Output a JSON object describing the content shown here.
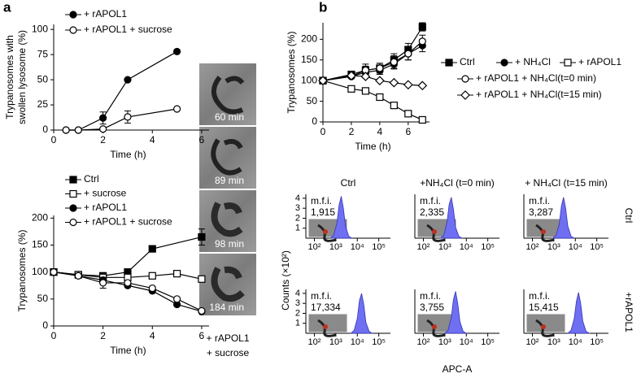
{
  "panel_labels": [
    "a",
    "b"
  ],
  "chart_data": [
    {
      "type": "line",
      "color": "#000000",
      "xlim": [
        0,
        6.3
      ],
      "xticks": [
        0,
        2,
        4,
        6
      ],
      "ylim": [
        0,
        105
      ],
      "yticks": [
        0,
        25,
        50,
        75,
        100
      ],
      "xlabel": "Time (h)",
      "ylabel": [
        "Trypanosomes with",
        "swollen lysosome (%)"
      ],
      "series": [
        {
          "name": "+ rAPOL1",
          "marker": "circle",
          "filled": true,
          "x": [
            0.5,
            1,
            2,
            3,
            5
          ],
          "values": [
            0,
            0,
            12,
            50,
            78
          ],
          "errors": [
            null,
            null,
            6,
            null,
            null
          ]
        },
        {
          "name": "+ rAPOL1 + sucrose",
          "marker": "circle",
          "filled": false,
          "x": [
            0.5,
            1,
            2,
            3,
            5
          ],
          "values": [
            0,
            0,
            1,
            13,
            21
          ],
          "errors": [
            null,
            null,
            null,
            6,
            null
          ]
        }
      ]
    },
    {
      "type": "line",
      "color": "#000000",
      "xlim": [
        0,
        6.3
      ],
      "xticks": [
        0,
        2,
        4,
        6
      ],
      "ylim": [
        0,
        205
      ],
      "yticks": [
        0,
        50,
        100,
        150,
        200
      ],
      "xlabel": "Time (h)",
      "ylabel": [
        "Trypanosomes (%)"
      ],
      "series": [
        {
          "name": "Ctrl",
          "marker": "square",
          "filled": true,
          "x": [
            0,
            1,
            2,
            3,
            4,
            6
          ],
          "values": [
            100,
            95,
            93,
            100,
            143,
            165
          ],
          "errors": [
            null,
            null,
            null,
            null,
            null,
            15
          ]
        },
        {
          "name": "+ sucrose",
          "marker": "square",
          "filled": false,
          "x": [
            0,
            1,
            2,
            3,
            4,
            5,
            6
          ],
          "values": [
            100,
            95,
            90,
            90,
            93,
            97,
            87
          ],
          "errors": [
            null,
            null,
            null,
            null,
            null,
            null,
            null
          ]
        },
        {
          "name": "+ rAPOL1",
          "marker": "circle",
          "filled": true,
          "x": [
            0,
            1,
            2,
            3,
            4,
            5,
            6
          ],
          "values": [
            100,
            93,
            85,
            75,
            65,
            40,
            27
          ],
          "errors": [
            null,
            null,
            null,
            null,
            null,
            null,
            null
          ]
        },
        {
          "name": "+ rAPOL1 + sucrose",
          "marker": "circle",
          "filled": false,
          "x": [
            0,
            1,
            2,
            3,
            4,
            5,
            6
          ],
          "values": [
            100,
            93,
            80,
            80,
            70,
            50,
            28
          ],
          "errors": [
            null,
            null,
            10,
            null,
            null,
            null,
            null
          ]
        }
      ]
    },
    {
      "type": "line",
      "color": "#000000",
      "xlim": [
        0,
        7.5
      ],
      "xticks": [
        0,
        2,
        4,
        6
      ],
      "ylim": [
        0,
        240
      ],
      "yticks": [
        0,
        50,
        100,
        150,
        200
      ],
      "xlabel": "Time (h)",
      "ylabel": [
        "Trypanosomes (%)"
      ],
      "series": [
        {
          "name": "Ctrl",
          "marker": "square",
          "filled": true,
          "x": [
            0,
            2,
            3,
            4,
            5,
            6,
            7
          ],
          "values": [
            100,
            115,
            125,
            130,
            150,
            175,
            230
          ],
          "errors": [
            null,
            8,
            15,
            12,
            15,
            15,
            10
          ]
        },
        {
          "name": "+ NH₄Cl",
          "marker": "circle",
          "filled": true,
          "x": [
            0,
            2,
            3,
            4,
            5,
            6,
            7
          ],
          "values": [
            100,
            110,
            120,
            125,
            140,
            165,
            185
          ],
          "errors": [
            null,
            null,
            10,
            10,
            12,
            15,
            15
          ]
        },
        {
          "name": "+ rAPOL1",
          "marker": "square",
          "filled": false,
          "x": [
            0,
            2,
            3,
            4,
            5,
            6,
            7
          ],
          "values": [
            100,
            80,
            75,
            60,
            40,
            20,
            5
          ],
          "errors": [
            null,
            null,
            null,
            null,
            null,
            null,
            null
          ]
        },
        {
          "name": "+ rAPOL1 + NH₄Cl(t=0 min)",
          "marker": "circle",
          "filled": false,
          "x": [
            0,
            2,
            3,
            4,
            5,
            6,
            7
          ],
          "values": [
            100,
            110,
            125,
            130,
            145,
            165,
            195
          ],
          "errors": [
            null,
            null,
            10,
            12,
            15,
            15,
            15
          ]
        },
        {
          "name": "+ rAPOL1 + NH₄Cl(t=15 min)",
          "marker": "diamond",
          "filled": false,
          "x": [
            0,
            2,
            3,
            4,
            5,
            6,
            7
          ],
          "values": [
            100,
            112,
            110,
            100,
            95,
            90,
            88
          ],
          "errors": [
            null,
            null,
            null,
            null,
            null,
            null,
            null
          ]
        }
      ]
    },
    {
      "type": "area",
      "xlog": true,
      "color": "#6f6ff2",
      "xlim": [
        40,
        350000
      ],
      "ylim": [
        0,
        4.4
      ],
      "yticks": [
        1,
        2,
        3,
        4
      ],
      "xticks": [
        {
          "value": 100,
          "label": "10²"
        },
        {
          "value": 1000,
          "label": "10³"
        },
        {
          "value": 10000,
          "label": "10⁴"
        },
        {
          "value": 100000,
          "label": "10⁵"
        }
      ],
      "x": [
        560,
        790,
        1120,
        1410,
        1780,
        2240,
        2820,
        3980,
        5620
      ],
      "values": [
        0,
        0.3,
        1.5,
        3.3,
        4.2,
        3.0,
        1.2,
        0.2,
        0
      ],
      "annotation_label": "m.f.i.",
      "annotation": "1,915"
    },
    {
      "type": "area",
      "xlog": true,
      "color": "#6f6ff2",
      "xlim": [
        40,
        350000
      ],
      "ylim": [
        0,
        4.4
      ],
      "xticks": [
        {
          "value": 100,
          "label": "10²"
        },
        {
          "value": 1000,
          "label": "10³"
        },
        {
          "value": 10000,
          "label": "10⁴"
        },
        {
          "value": 100000,
          "label": "10⁵"
        }
      ],
      "x": [
        630,
        890,
        1260,
        1590,
        2000,
        2510,
        3160,
        4470,
        6310
      ],
      "values": [
        0,
        0.3,
        1.6,
        3.4,
        4.1,
        2.9,
        1.1,
        0.2,
        0
      ],
      "annotation_label": "m.f.i.",
      "annotation": "2,335"
    },
    {
      "type": "area",
      "xlog": true,
      "color": "#6f6ff2",
      "xlim": [
        40,
        350000
      ],
      "ylim": [
        0,
        4.4
      ],
      "xticks": [
        {
          "value": 100,
          "label": "10²"
        },
        {
          "value": 1000,
          "label": "10³"
        },
        {
          "value": 10000,
          "label": "10⁴"
        },
        {
          "value": 100000,
          "label": "10⁵"
        }
      ],
      "x": [
        890,
        1260,
        1780,
        2240,
        2820,
        3550,
        4470,
        6310,
        8910
      ],
      "values": [
        0,
        0.3,
        1.4,
        3.2,
        4.1,
        3.0,
        1.2,
        0.2,
        0
      ],
      "annotation_label": "m.f.i.",
      "annotation": "3,287"
    },
    {
      "type": "area",
      "xlog": true,
      "color": "#6f6ff2",
      "xlim": [
        40,
        350000
      ],
      "ylim": [
        0,
        4.4
      ],
      "yticks": [
        1,
        2,
        3,
        4
      ],
      "xticks": [
        {
          "value": 100,
          "label": "10²"
        },
        {
          "value": 1000,
          "label": "10³"
        },
        {
          "value": 10000,
          "label": "10⁴"
        },
        {
          "value": 100000,
          "label": "10⁵"
        }
      ],
      "x": [
        5010,
        7080,
        10000,
        12590,
        15850,
        19950,
        25120,
        35480,
        50120
      ],
      "values": [
        0,
        0.3,
        1.5,
        3.3,
        4.0,
        2.9,
        1.1,
        0.2,
        0
      ],
      "annotation_label": "m.f.i.",
      "annotation": "17,334"
    },
    {
      "type": "area",
      "xlog": true,
      "color": "#6f6ff2",
      "xlim": [
        40,
        350000
      ],
      "ylim": [
        0,
        4.4
      ],
      "xticks": [
        {
          "value": 100,
          "label": "10²"
        },
        {
          "value": 1000,
          "label": "10³"
        },
        {
          "value": 10000,
          "label": "10⁴"
        },
        {
          "value": 100000,
          "label": "10⁵"
        }
      ],
      "x": [
        1000,
        1410,
        2000,
        2510,
        3160,
        3980,
        5010,
        7080,
        10000
      ],
      "values": [
        0,
        0.3,
        1.6,
        3.4,
        4.2,
        3.0,
        1.2,
        0.2,
        0
      ],
      "annotation_label": "m.f.i.",
      "annotation": "3,755"
    },
    {
      "type": "area",
      "xlog": true,
      "color": "#6f6ff2",
      "xlim": [
        40,
        350000
      ],
      "ylim": [
        0,
        4.4
      ],
      "xticks": [
        {
          "value": 100,
          "label": "10²"
        },
        {
          "value": 1000,
          "label": "10³"
        },
        {
          "value": 10000,
          "label": "10⁴"
        },
        {
          "value": 100000,
          "label": "10⁵"
        }
      ],
      "x": [
        4470,
        6310,
        8910,
        11220,
        14130,
        17780,
        22390,
        31620,
        44670
      ],
      "values": [
        0,
        0.3,
        1.5,
        3.2,
        4.1,
        3.0,
        1.2,
        0.2,
        0
      ],
      "annotation_label": "m.f.i.",
      "annotation": "15,415"
    }
  ],
  "micrographs": {
    "labels": [
      "60 min",
      "89 min",
      "98 min",
      "184 min"
    ],
    "caption": [
      "+ rAPOL1",
      "+ sucrose"
    ]
  },
  "facs": {
    "columns": [
      "Ctrl",
      "+NH₄Cl (t=0 min)",
      "+ NH₄Cl (t=15 min)"
    ],
    "rows": [
      "Ctrl",
      "+rAPOL1"
    ],
    "ylabel": "Counts (×10²)",
    "xlabel": "APC-A"
  }
}
